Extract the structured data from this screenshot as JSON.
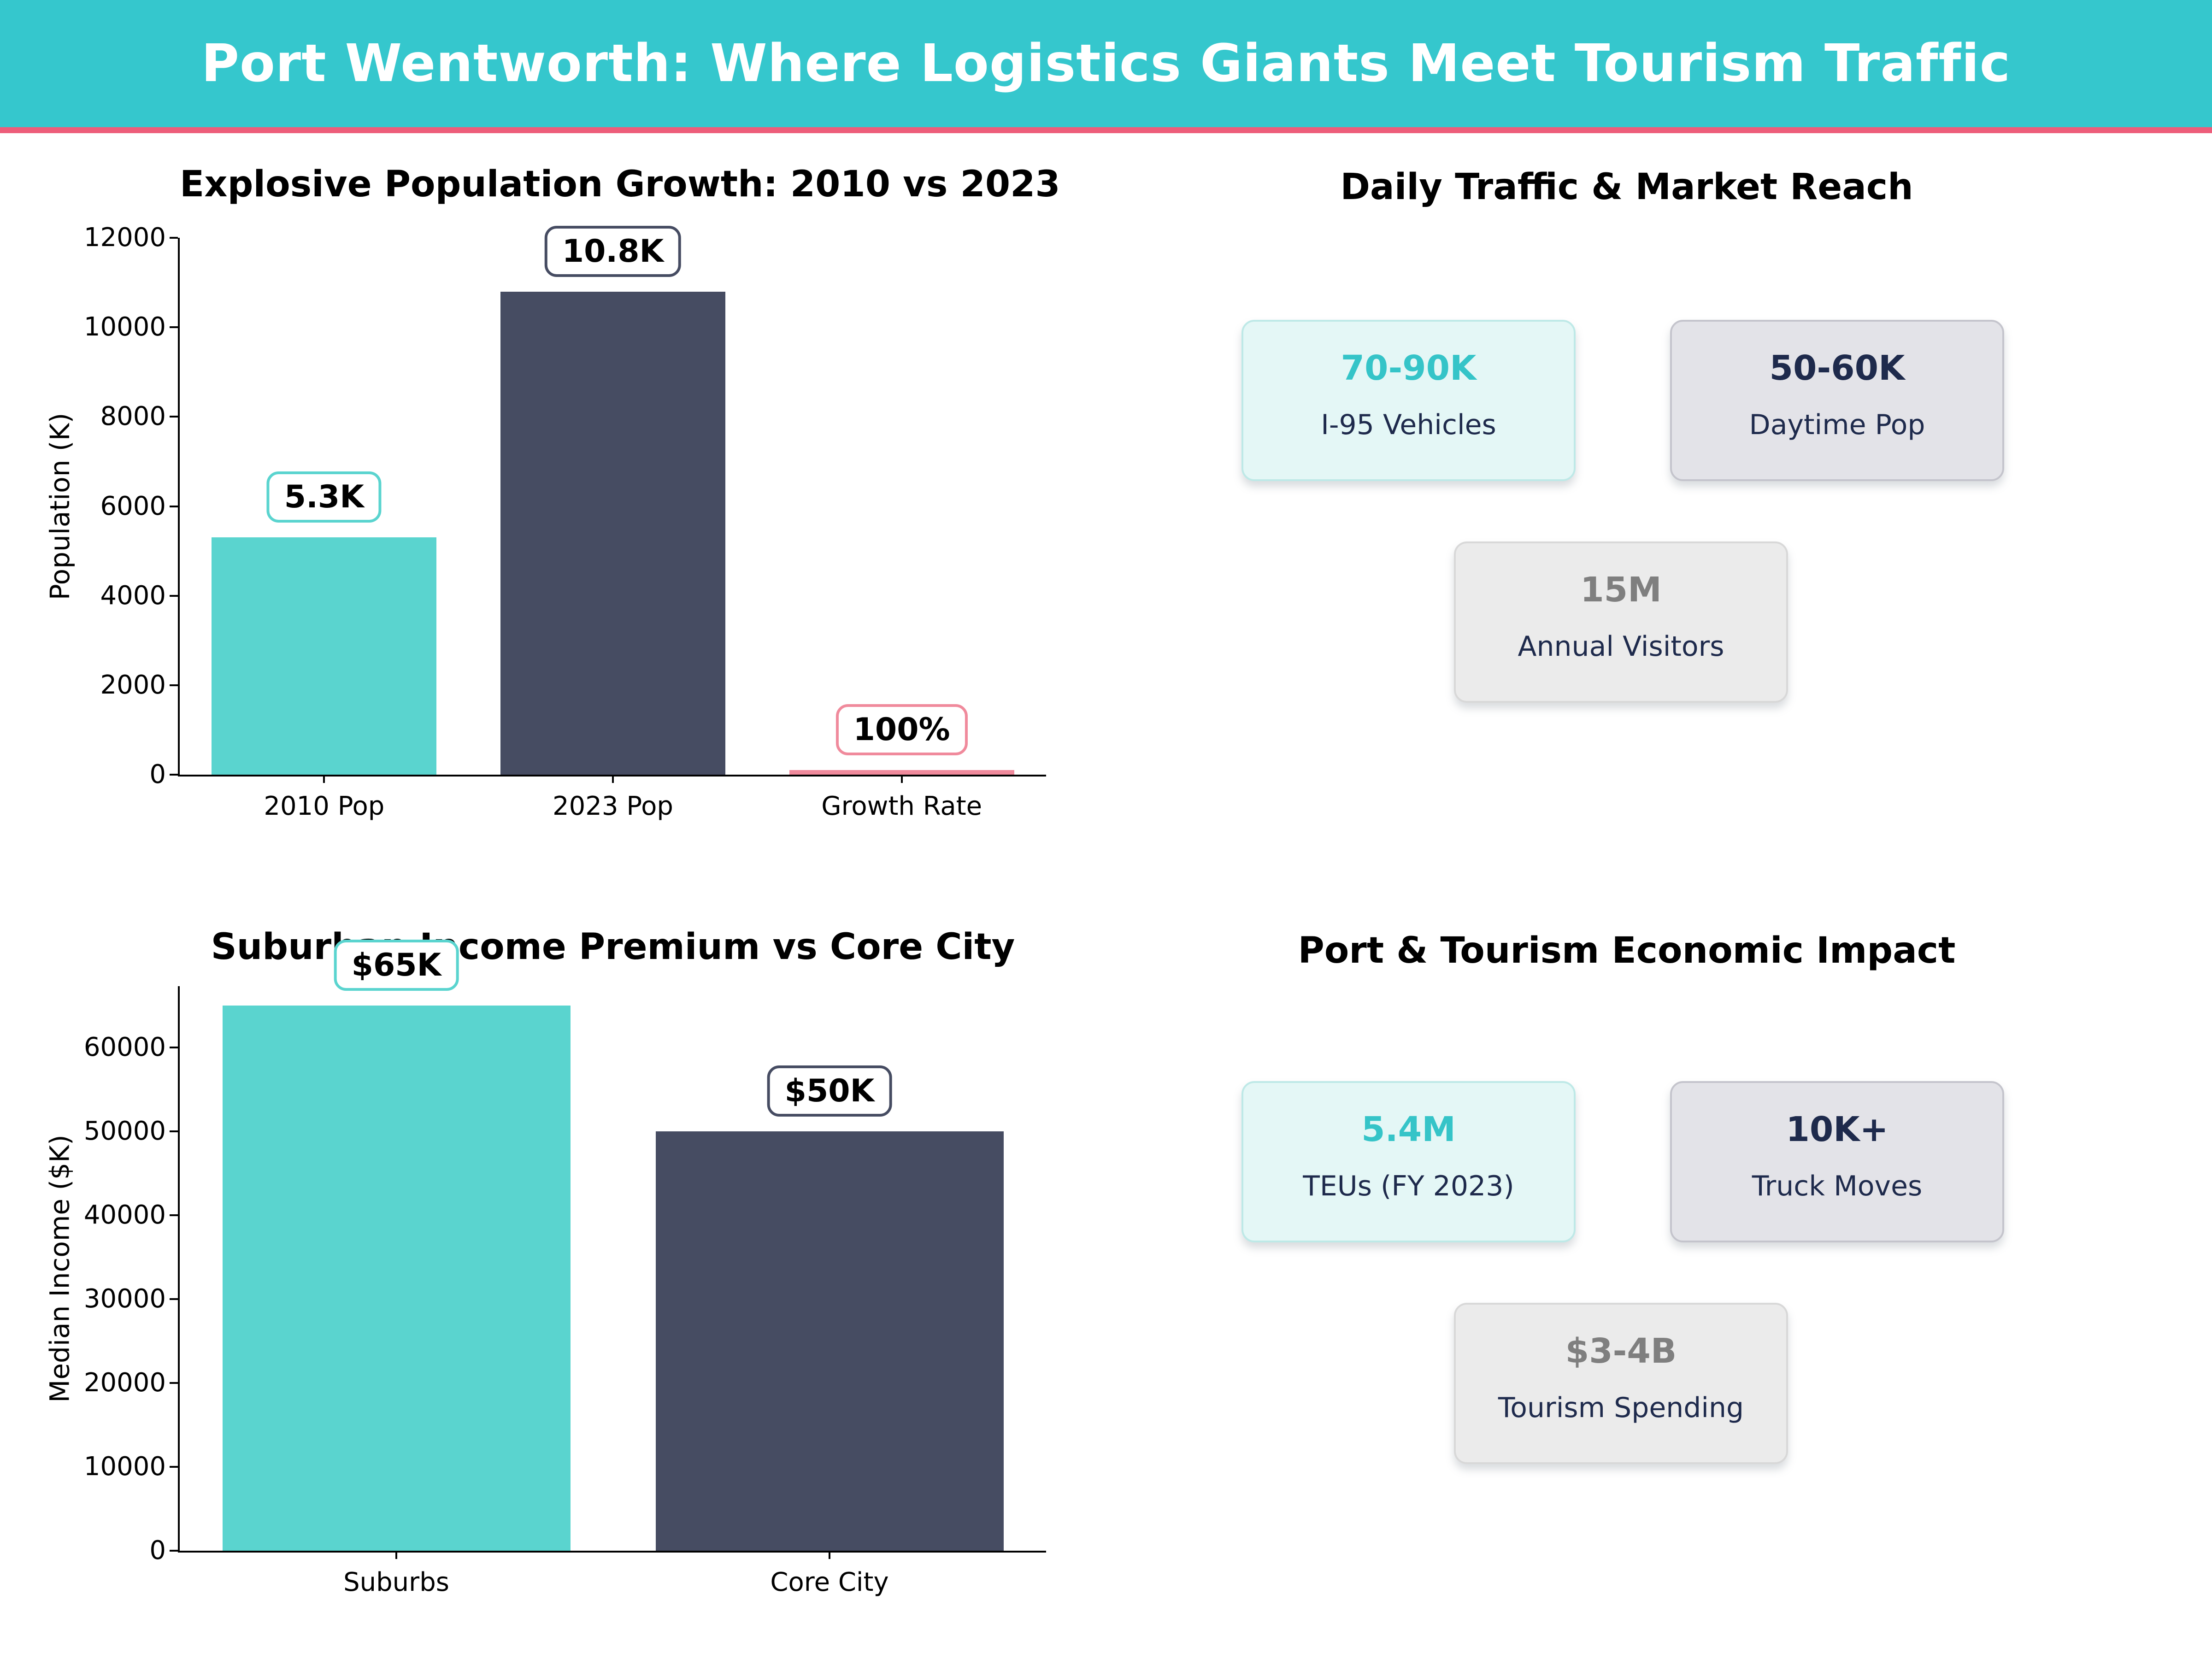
{
  "banner": {
    "title": "Port Wentworth: Where Logistics Giants Meet Tourism Traffic",
    "bg_color": "#35C7CD",
    "stripe_color": "#ED5D7A",
    "text_color": "#FFFFFF"
  },
  "chart_data": [
    {
      "type": "bar",
      "title": "Explosive Population Growth: 2010 vs 2023",
      "xlabel": "",
      "ylabel": "Population (K)",
      "categories": [
        "2010 Pop",
        "2023 Pop",
        "Growth Rate"
      ],
      "values": [
        5300,
        10800,
        100
      ],
      "value_labels": [
        "5.3K",
        "10.8K",
        "100%"
      ],
      "bar_colors": [
        "#5AD4CF",
        "#464C62",
        "#F08A9C"
      ],
      "label_border_colors": [
        "#5AD4CF",
        "#464C62",
        "#F08A9C"
      ],
      "ylim": [
        0,
        12000
      ],
      "yticks": [
        0,
        2000,
        4000,
        6000,
        8000,
        10000,
        12000
      ],
      "grid": false,
      "legend": null
    },
    {
      "type": "bar",
      "title": "Suburban Income Premium vs Core City",
      "xlabel": "",
      "ylabel": "Median Income ($K)",
      "categories": [
        "Suburbs",
        "Core City"
      ],
      "values": [
        65000,
        50000
      ],
      "value_labels": [
        "$65K",
        "$50K"
      ],
      "bar_colors": [
        "#5AD4CF",
        "#464C62"
      ],
      "label_border_colors": [
        "#5AD4CF",
        "#464C62"
      ],
      "ylim": [
        0,
        67300
      ],
      "yticks": [
        0,
        10000,
        20000,
        30000,
        40000,
        50000,
        60000
      ],
      "grid": false,
      "legend": null
    }
  ],
  "stat_sections": [
    {
      "title": "Daily Traffic & Market Reach",
      "cards": [
        {
          "value": "70-90K",
          "label": "I-95 Vehicles",
          "variant": "mint",
          "value_color": "#35C4C8"
        },
        {
          "value": "50-60K",
          "label": "Daytime Pop",
          "variant": "gray",
          "value_color": "#1E2A4C"
        },
        {
          "value": "15M",
          "label": "Annual Visitors",
          "variant": "light",
          "value_color": "#7F7F7F"
        }
      ]
    },
    {
      "title": "Port & Tourism Economic Impact",
      "cards": [
        {
          "value": "5.4M",
          "label": "TEUs (FY 2023)",
          "variant": "mint",
          "value_color": "#35C4C8"
        },
        {
          "value": "10K+",
          "label": "Truck Moves",
          "variant": "gray",
          "value_color": "#1E2A4C"
        },
        {
          "value": "$3-4B",
          "label": "Tourism Spending",
          "variant": "light",
          "value_color": "#7F7F7F"
        }
      ]
    }
  ],
  "card_variants": {
    "mint": {
      "bg": "#E4F7F6",
      "border": "#BEE9E7"
    },
    "gray": {
      "bg": "#E3E3E8",
      "border": "#C4C4CC"
    },
    "light": {
      "bg": "#EBEBEB",
      "border": "#D8D8D8"
    },
    "label_color": "#1E2A4C"
  }
}
